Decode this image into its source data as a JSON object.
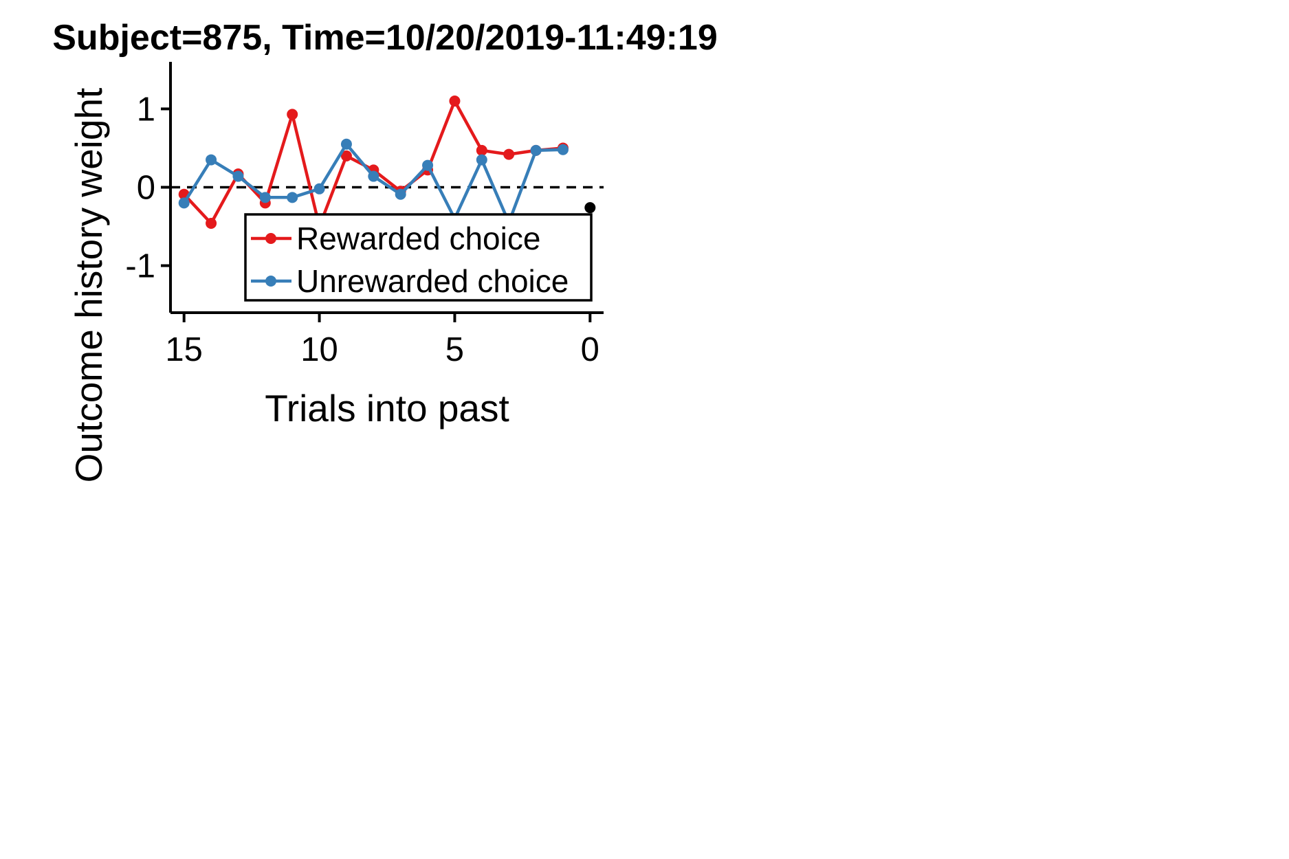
{
  "chart_data": {
    "type": "line",
    "title": "Subject=875, Time=10/20/2019-11:49:19",
    "xlabel": "Trials into past",
    "ylabel": "Outcome history weight",
    "xlim": [
      15.5,
      -0.5
    ],
    "ylim": [
      -1.6,
      1.6
    ],
    "x_ticks": [
      15,
      10,
      5,
      0
    ],
    "y_ticks": [
      1,
      0,
      -1
    ],
    "x_tick_labels": [
      "15",
      "10",
      "5",
      "0"
    ],
    "y_tick_labels": [
      "1",
      "0",
      "-1"
    ],
    "reference_line": {
      "y": 0,
      "style": "dashed",
      "color": "#000000"
    },
    "legend_position": "lower-right",
    "series": [
      {
        "name": "Rewarded choice",
        "color": "#e41a1c",
        "x": [
          15,
          14,
          13,
          12,
          11,
          10,
          9,
          8,
          7,
          6,
          5,
          4,
          3,
          2,
          1
        ],
        "y": [
          -0.09,
          -0.46,
          0.17,
          -0.2,
          0.93,
          -0.5,
          0.4,
          0.22,
          -0.05,
          0.22,
          1.1,
          0.47,
          0.42,
          0.47,
          0.5
        ]
      },
      {
        "name": "Unrewarded choice",
        "color": "#377eb8",
        "x": [
          15,
          14,
          13,
          12,
          11,
          10,
          9,
          8,
          7,
          6,
          5,
          4,
          3,
          2,
          1
        ],
        "y": [
          -0.2,
          0.35,
          0.14,
          -0.13,
          -0.13,
          -0.02,
          0.55,
          0.14,
          -0.09,
          0.28,
          -0.4,
          0.35,
          -0.45,
          0.47,
          0.48
        ]
      },
      {
        "color": "#000000",
        "x": [
          0
        ],
        "y": [
          -0.26
        ]
      }
    ]
  }
}
